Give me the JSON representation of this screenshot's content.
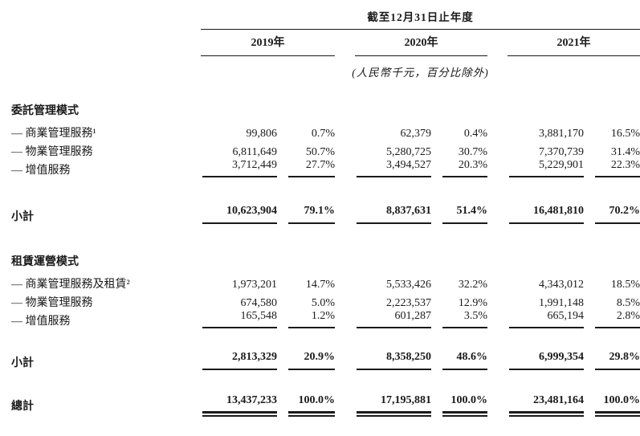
{
  "table": {
    "period_header": "截至12月31日止年度",
    "years": [
      "2019年",
      "2020年",
      "2021年"
    ],
    "unit_note": "(人民幣千元，百分比除外)",
    "sections": [
      {
        "title": "委託管理模式",
        "rows": [
          {
            "label": "— 商業管理服務¹",
            "values": [
              "99,806",
              "0.7%",
              "62,379",
              "0.4%",
              "3,881,170",
              "16.5%"
            ]
          },
          {
            "label": "— 物業管理服務",
            "values": [
              "6,811,649",
              "50.7%",
              "5,280,725",
              "30.7%",
              "7,370,739",
              "31.4%"
            ]
          },
          {
            "label": "— 增值服務",
            "values": [
              "3,712,449",
              "27.7%",
              "3,494,527",
              "20.3%",
              "5,229,901",
              "22.3%"
            ]
          }
        ],
        "subtotal": {
          "label": "小計",
          "values": [
            "10,623,904",
            "79.1%",
            "8,837,631",
            "51.4%",
            "16,481,810",
            "70.2%"
          ]
        }
      },
      {
        "title": "租賃運營模式",
        "rows": [
          {
            "label": "— 商業管理服務及租賃²",
            "values": [
              "1,973,201",
              "14.7%",
              "5,533,426",
              "32.2%",
              "4,343,012",
              "18.5%"
            ]
          },
          {
            "label": "— 物業管理服務",
            "values": [
              "674,580",
              "5.0%",
              "2,223,537",
              "12.9%",
              "1,991,148",
              "8.5%"
            ]
          },
          {
            "label": "— 增值服務",
            "values": [
              "165,548",
              "1.2%",
              "601,287",
              "3.5%",
              "665,194",
              "2.8%"
            ]
          }
        ],
        "subtotal": {
          "label": "小計",
          "values": [
            "2,813,329",
            "20.9%",
            "8,358,250",
            "48.6%",
            "6,999,354",
            "29.8%"
          ]
        }
      }
    ],
    "total": {
      "label": "總計",
      "values": [
        "13,437,233",
        "100.0%",
        "17,195,881",
        "100.0%",
        "23,481,164",
        "100.0%"
      ]
    }
  }
}
